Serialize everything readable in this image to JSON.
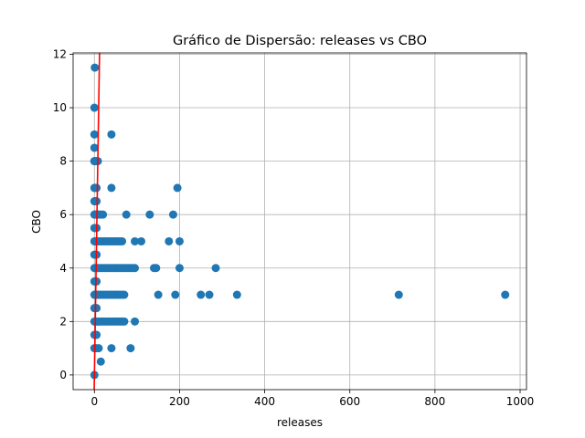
{
  "chart_data": {
    "type": "scatter",
    "title": "Gráfico de Dispersão: releases vs CBO",
    "xlabel": "releases",
    "ylabel": "CBO",
    "xlim": [
      -50,
      1015
    ],
    "ylim": [
      -0.55,
      12.05
    ],
    "xticks": [
      0,
      200,
      400,
      600,
      800,
      1000
    ],
    "yticks": [
      0,
      2,
      4,
      6,
      8,
      10,
      12
    ],
    "grid": true,
    "point_color": "#1f77b4",
    "line_color": "#ff0000",
    "reference_line": {
      "type": "identity",
      "description": "y = x"
    },
    "series": [
      {
        "x": [
          1,
          0,
          0,
          0,
          40,
          0,
          1,
          0,
          2,
          5,
          8,
          0,
          2,
          5,
          40,
          0,
          2,
          5,
          195,
          0,
          1,
          2,
          5,
          8,
          10,
          15,
          20,
          75,
          130,
          185,
          0,
          2,
          5,
          0,
          2,
          5,
          8,
          10,
          15,
          20,
          25,
          30,
          35,
          40,
          45,
          50,
          55,
          60,
          65,
          95,
          110,
          175,
          200,
          0,
          2,
          5,
          0,
          2,
          5,
          8,
          10,
          15,
          20,
          25,
          30,
          35,
          40,
          45,
          50,
          55,
          60,
          65,
          70,
          75,
          80,
          85,
          90,
          95,
          140,
          145,
          200,
          285,
          0,
          2,
          5,
          0,
          2,
          5,
          8,
          10,
          15,
          20,
          25,
          30,
          35,
          40,
          45,
          50,
          55,
          60,
          65,
          70,
          150,
          190,
          250,
          270,
          335,
          715,
          965,
          0,
          2,
          5,
          0,
          2,
          5,
          8,
          10,
          15,
          20,
          25,
          30,
          35,
          40,
          45,
          50,
          55,
          60,
          65,
          70,
          95,
          0,
          2,
          5,
          0,
          2,
          5,
          10,
          40,
          85,
          15,
          0
        ],
        "y": [
          11.5,
          10,
          9,
          8.5,
          9,
          8,
          8,
          8,
          8,
          8,
          8,
          7,
          7,
          7,
          7,
          6.5,
          6.5,
          6.5,
          7,
          6,
          6,
          6,
          6,
          6,
          6,
          6,
          6,
          6,
          6,
          6,
          5.5,
          5.5,
          5.5,
          5,
          5,
          5,
          5,
          5,
          5,
          5,
          5,
          5,
          5,
          5,
          5,
          5,
          5,
          5,
          5,
          5,
          5,
          5,
          5,
          4.5,
          4.5,
          4.5,
          4,
          4,
          4,
          4,
          4,
          4,
          4,
          4,
          4,
          4,
          4,
          4,
          4,
          4,
          4,
          4,
          4,
          4,
          4,
          4,
          4,
          4,
          4,
          4,
          4,
          4,
          3.5,
          3.5,
          3.5,
          3,
          3,
          3,
          3,
          3,
          3,
          3,
          3,
          3,
          3,
          3,
          3,
          3,
          3,
          3,
          3,
          3,
          3,
          3,
          3,
          3,
          3,
          3,
          3,
          2.5,
          2.5,
          2.5,
          2,
          2,
          2,
          2,
          2,
          2,
          2,
          2,
          2,
          2,
          2,
          2,
          2,
          2,
          2,
          2,
          2,
          2,
          1.5,
          1.5,
          1.5,
          1,
          1,
          1,
          1,
          1,
          1,
          0.5,
          0
        ]
      }
    ]
  }
}
